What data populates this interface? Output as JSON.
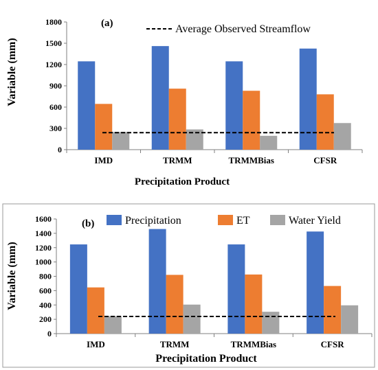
{
  "colors": {
    "precipitation": "#4472C4",
    "et": "#ED7D31",
    "water_yield": "#A5A5A5",
    "axis": "#7f7f7f",
    "frame": "#9a9a9a"
  },
  "chart_data": [
    {
      "type": "bar",
      "panel_label": "(a)",
      "categories": [
        "IMD",
        "TRMM",
        "TRMMBias",
        "CFSR"
      ],
      "series": [
        {
          "name": "Precipitation",
          "values": [
            1245,
            1460,
            1245,
            1425
          ]
        },
        {
          "name": "ET",
          "values": [
            645,
            860,
            830,
            780
          ]
        },
        {
          "name": "Water Yield",
          "values": [
            250,
            285,
            195,
            375
          ]
        }
      ],
      "reference_line": {
        "name": "Average Observed Streamflow",
        "value": 240,
        "style": "dashed"
      },
      "xlabel": "Precipitation Product",
      "ylabel": "Variable (mm)",
      "ylim": [
        0,
        1800
      ],
      "yticks": [
        0,
        300,
        600,
        900,
        1200,
        1500,
        1800
      ],
      "grid": false,
      "legend_position": "top-center"
    },
    {
      "type": "bar",
      "panel_label": "(b)",
      "categories": [
        "IMD",
        "TRMM",
        "TRMMBias",
        "CFSR"
      ],
      "series": [
        {
          "name": "Precipitation",
          "values": [
            1245,
            1460,
            1245,
            1425
          ]
        },
        {
          "name": "ET",
          "values": [
            645,
            820,
            825,
            665
          ]
        },
        {
          "name": "Water Yield",
          "values": [
            245,
            405,
            305,
            395
          ]
        }
      ],
      "reference_line": {
        "value": 240,
        "style": "dashed"
      },
      "xlabel": "Precipitation Product",
      "ylabel": "Variable (mm)",
      "ylim": [
        0,
        1600
      ],
      "yticks": [
        0,
        200,
        400,
        600,
        800,
        1000,
        1200,
        1400,
        1600
      ],
      "grid": false,
      "legend_position": "top"
    }
  ]
}
